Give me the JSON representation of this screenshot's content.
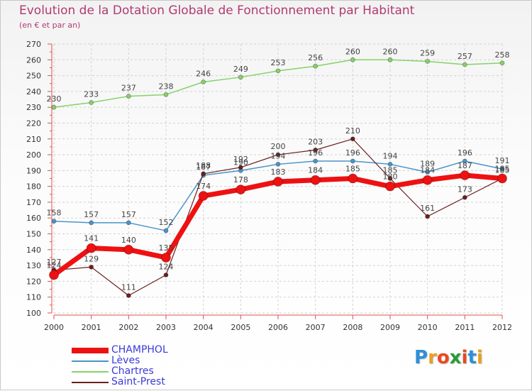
{
  "header": {
    "title": "Evolution de la Dotation Globale de Fonctionnement par Habitant",
    "subtitle": "(en € et par an)"
  },
  "logo": {
    "text": "Proxiti",
    "letters": [
      "P",
      "r",
      "o",
      "x",
      "i",
      "t",
      "i"
    ],
    "colors": [
      "#2f8fd8",
      "#e8a020",
      "#e84a1f",
      "#2a9a3a",
      "#e84a1f",
      "#2f8fd8",
      "#e8a020"
    ]
  },
  "chart_data": {
    "type": "line",
    "title": "Evolution de la Dotation Globale de Fonctionnement par Habitant",
    "subtitle": "(en € et par an)",
    "xlabel": "",
    "ylabel": "",
    "ylim": [
      100,
      270
    ],
    "yticks": [
      100,
      110,
      120,
      130,
      140,
      150,
      160,
      170,
      180,
      190,
      200,
      210,
      220,
      230,
      240,
      250,
      260,
      270
    ],
    "categories": [
      "2000",
      "2001",
      "2002",
      "2003",
      "2004",
      "2005",
      "2006",
      "2007",
      "2008",
      "2009",
      "2010",
      "2011",
      "2012"
    ],
    "series": [
      {
        "name": "Chartres",
        "color": "#86d16a",
        "values": [
          230,
          233,
          237,
          238,
          246,
          249,
          253,
          256,
          260,
          260,
          259,
          257,
          258
        ]
      },
      {
        "name": "Lèves",
        "color": "#4a94c8",
        "values": [
          158,
          157,
          157,
          152,
          187,
          190,
          194,
          196,
          196,
          194,
          189,
          196,
          191
        ]
      },
      {
        "name": "Saint-Prest",
        "color": "#6b1f1f",
        "values": [
          127,
          129,
          111,
          124,
          188,
          192,
          200,
          203,
          210,
          185,
          161,
          173,
          185
        ]
      },
      {
        "name": "CHAMPHOL",
        "color": "#ee1111",
        "values": [
          124,
          141,
          140,
          135,
          174,
          178,
          183,
          184,
          185,
          180,
          184,
          187,
          185
        ]
      }
    ],
    "legend": [
      "CHAMPHOL",
      "Lèves",
      "Chartres",
      "Saint-Prest"
    ],
    "legend_position": "bottom-left",
    "grid": true
  }
}
